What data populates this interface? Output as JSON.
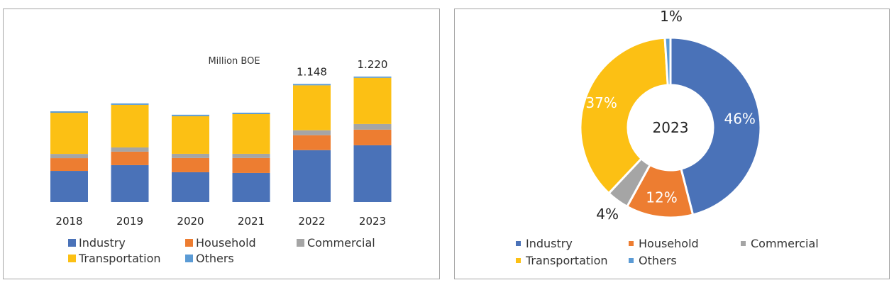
{
  "chart_data": [
    {
      "type": "bar",
      "stacked": true,
      "title": "",
      "annotation": "Million BOE",
      "xlabel": "",
      "ylabel": "",
      "categories": [
        "2018",
        "2019",
        "2020",
        "2021",
        "2022",
        "2023"
      ],
      "series": [
        {
          "name": "Industry",
          "color": "#4a72b8",
          "values": [
            0.303,
            0.359,
            0.29,
            0.283,
            0.505,
            0.552
          ]
        },
        {
          "name": "Household",
          "color": "#ed7d31",
          "values": [
            0.124,
            0.131,
            0.138,
            0.145,
            0.145,
            0.152
          ]
        },
        {
          "name": "Commercial",
          "color": "#a5a5a5",
          "values": [
            0.041,
            0.041,
            0.041,
            0.041,
            0.048,
            0.055
          ]
        },
        {
          "name": "Transportation",
          "color": "#fcc014",
          "values": [
            0.4,
            0.414,
            0.366,
            0.386,
            0.437,
            0.449
          ]
        },
        {
          "name": "Others",
          "color": "#5b9bd5",
          "values": [
            0.014,
            0.014,
            0.014,
            0.014,
            0.013,
            0.012
          ]
        }
      ],
      "data_labels": [
        {
          "category": "2022",
          "text": "1.148"
        },
        {
          "category": "2023",
          "text": "1.220"
        }
      ],
      "ylim": [
        0,
        1.35
      ],
      "grid": false,
      "legend": "bottom"
    },
    {
      "type": "pie",
      "donut": true,
      "center_label": "2023",
      "slices": [
        {
          "name": "Industry",
          "value": 46,
          "label": "46%",
          "color": "#4a72b8"
        },
        {
          "name": "Household",
          "value": 12,
          "label": "12%",
          "color": "#ed7d31"
        },
        {
          "name": "Commercial",
          "value": 4,
          "label": "4%",
          "color": "#a5a5a5"
        },
        {
          "name": "Transportation",
          "value": 37,
          "label": "37%",
          "color": "#fcc014"
        },
        {
          "name": "Others",
          "value": 1,
          "label": "1%",
          "color": "#5b9bd5"
        }
      ],
      "legend": "bottom"
    }
  ],
  "legend_left": [
    {
      "label": "Industry",
      "color": "#4a72b8"
    },
    {
      "label": "Household",
      "color": "#ed7d31"
    },
    {
      "label": "Commercial",
      "color": "#a5a5a5"
    },
    {
      "label": "Transportation",
      "color": "#fcc014"
    },
    {
      "label": "Others",
      "color": "#5b9bd5"
    }
  ],
  "legend_right": [
    {
      "label": "Industry",
      "color": "#4a72b8"
    },
    {
      "label": "Household",
      "color": "#ed7d31"
    },
    {
      "label": "Commercial",
      "color": "#a5a5a5"
    },
    {
      "label": "Transportation",
      "color": "#fcc014"
    },
    {
      "label": "Others",
      "color": "#5b9bd5"
    }
  ]
}
